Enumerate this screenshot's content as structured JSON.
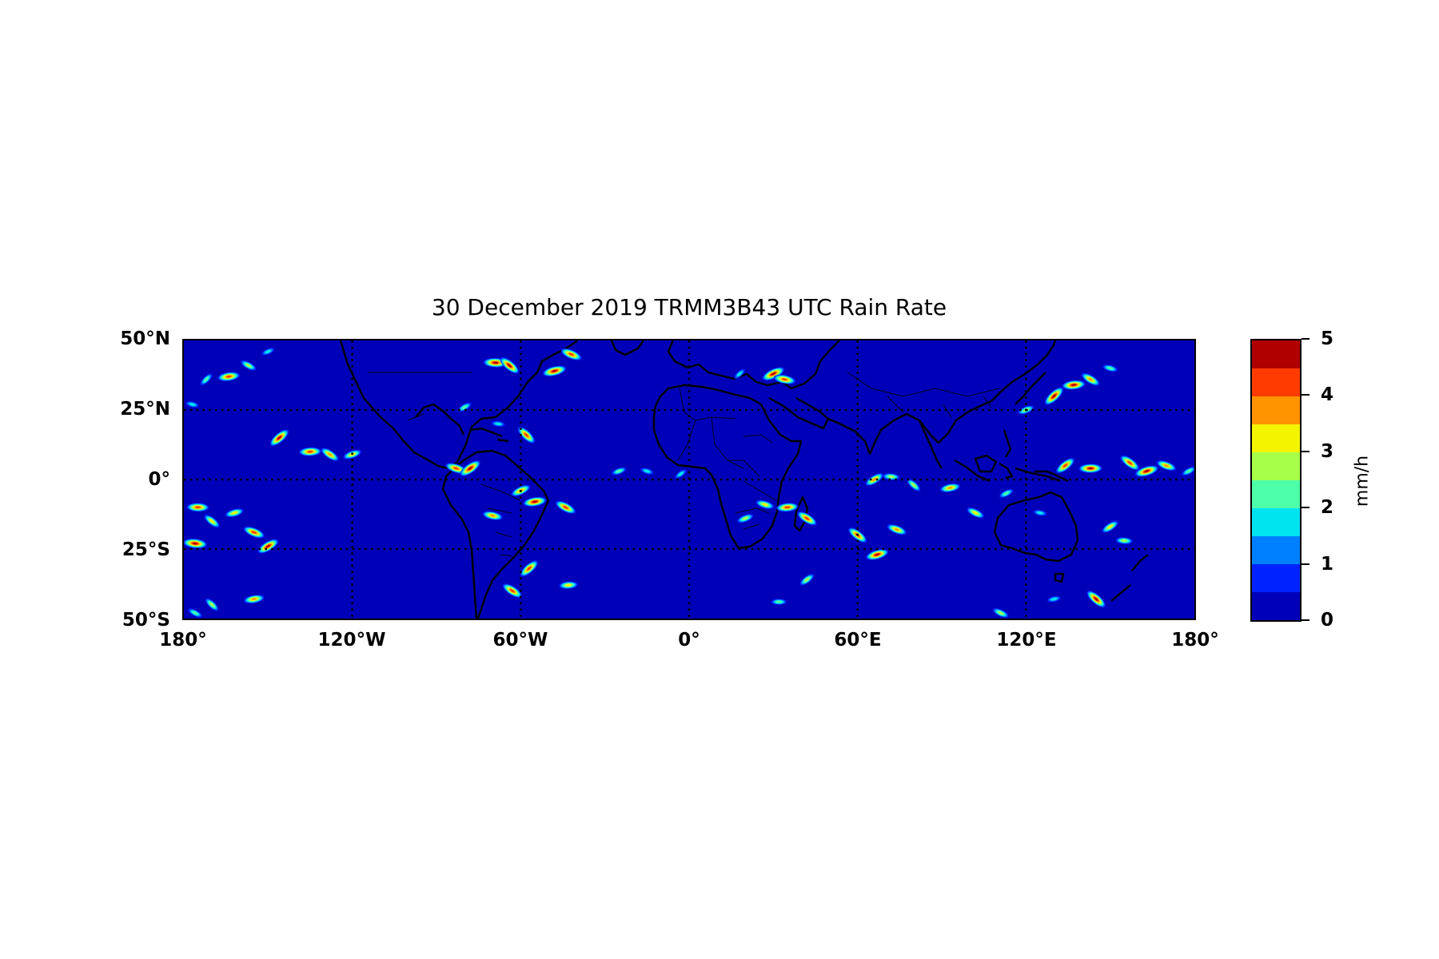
{
  "title": "30 December 2019 TRMM3B43 UTC Rain Rate",
  "chart_data": {
    "type": "heatmap",
    "title": "30 December 2019 TRMM3B43 UTC Rain Rate",
    "projection": "equirectangular",
    "x_range": [
      -180,
      180
    ],
    "y_range": [
      -50,
      50
    ],
    "grid": "dotted",
    "lat_ticks": [
      {
        "value": 50,
        "label": "50°N"
      },
      {
        "value": 25,
        "label": "25°N"
      },
      {
        "value": 0,
        "label": "0°"
      },
      {
        "value": -25,
        "label": "25°S"
      },
      {
        "value": -50,
        "label": "50°S"
      }
    ],
    "lon_ticks": [
      {
        "value": -180,
        "label": "180°"
      },
      {
        "value": -120,
        "label": "120°W"
      },
      {
        "value": -60,
        "label": "60°W"
      },
      {
        "value": 0,
        "label": "0°"
      },
      {
        "value": 60,
        "label": "60°E"
      },
      {
        "value": 120,
        "label": "120°E"
      },
      {
        "value": 180,
        "label": "180°"
      }
    ],
    "colorbar": {
      "label": "mm/h",
      "range": [
        0,
        5
      ],
      "ticks": [
        0,
        1,
        2,
        3,
        4,
        5
      ],
      "colors": [
        "#0000b8",
        "#0022ff",
        "#0080ff",
        "#00e4f0",
        "#4dffa8",
        "#a8ff4a",
        "#f4f400",
        "#ff9400",
        "#ff3b00",
        "#b00000"
      ]
    },
    "rain_cells": [
      {
        "lon": -172,
        "lat": 36,
        "value": 2.5
      },
      {
        "lon": -164,
        "lat": 37,
        "value": 4.5
      },
      {
        "lon": -157,
        "lat": 41,
        "value": 3.0
      },
      {
        "lon": -150,
        "lat": 46,
        "value": 2.0
      },
      {
        "lon": -177,
        "lat": 27,
        "value": 2.0
      },
      {
        "lon": -146,
        "lat": 15,
        "value": 4.8
      },
      {
        "lon": -135,
        "lat": 10,
        "value": 4.5
      },
      {
        "lon": -128,
        "lat": 9,
        "value": 4.0
      },
      {
        "lon": -120,
        "lat": 9,
        "value": 3.5
      },
      {
        "lon": -83,
        "lat": 4,
        "value": 4.5
      },
      {
        "lon": -78,
        "lat": 4,
        "value": 5.0
      },
      {
        "lon": -69,
        "lat": 42,
        "value": 5.0
      },
      {
        "lon": -64,
        "lat": 41,
        "value": 4.8
      },
      {
        "lon": -48,
        "lat": 39,
        "value": 5.0
      },
      {
        "lon": -42,
        "lat": 45,
        "value": 4.5
      },
      {
        "lon": -80,
        "lat": 26,
        "value": 2.5
      },
      {
        "lon": -68,
        "lat": 20,
        "value": 2.0
      },
      {
        "lon": -58,
        "lat": 16,
        "value": 4.5
      },
      {
        "lon": -55,
        "lat": -8,
        "value": 4.8
      },
      {
        "lon": -44,
        "lat": -10,
        "value": 4.5
      },
      {
        "lon": -60,
        "lat": -4,
        "value": 4.0
      },
      {
        "lon": -70,
        "lat": -13,
        "value": 4.0
      },
      {
        "lon": -57,
        "lat": -32,
        "value": 4.5
      },
      {
        "lon": -43,
        "lat": -38,
        "value": 3.5
      },
      {
        "lon": -63,
        "lat": -40,
        "value": 4.5
      },
      {
        "lon": -25,
        "lat": 3,
        "value": 2.5
      },
      {
        "lon": -15,
        "lat": 3,
        "value": 2.0
      },
      {
        "lon": -3,
        "lat": 2,
        "value": 2.0
      },
      {
        "lon": -175,
        "lat": -10,
        "value": 4.5
      },
      {
        "lon": -170,
        "lat": -15,
        "value": 3.5
      },
      {
        "lon": -162,
        "lat": -12,
        "value": 3.5
      },
      {
        "lon": -155,
        "lat": -19,
        "value": 4.5
      },
      {
        "lon": -150,
        "lat": -24,
        "value": 4.8
      },
      {
        "lon": -176,
        "lat": -23,
        "value": 5.0
      },
      {
        "lon": -170,
        "lat": -45,
        "value": 3.0
      },
      {
        "lon": -155,
        "lat": -43,
        "value": 4.0
      },
      {
        "lon": -176,
        "lat": -48,
        "value": 2.5
      },
      {
        "lon": 30,
        "lat": 38,
        "value": 5.0
      },
      {
        "lon": 34,
        "lat": 36,
        "value": 4.5
      },
      {
        "lon": 18,
        "lat": 38,
        "value": 2.0
      },
      {
        "lon": 35,
        "lat": -10,
        "value": 4.5
      },
      {
        "lon": 42,
        "lat": -14,
        "value": 4.5
      },
      {
        "lon": 20,
        "lat": -14,
        "value": 3.0
      },
      {
        "lon": 27,
        "lat": -9,
        "value": 3.5
      },
      {
        "lon": 42,
        "lat": -36,
        "value": 3.0
      },
      {
        "lon": 32,
        "lat": -44,
        "value": 2.5
      },
      {
        "lon": 60,
        "lat": -20,
        "value": 4.5
      },
      {
        "lon": 67,
        "lat": -27,
        "value": 4.8
      },
      {
        "lon": 74,
        "lat": -18,
        "value": 4.0
      },
      {
        "lon": 66,
        "lat": 0,
        "value": 4.0
      },
      {
        "lon": 72,
        "lat": 1,
        "value": 3.0
      },
      {
        "lon": 80,
        "lat": -2,
        "value": 3.0
      },
      {
        "lon": 93,
        "lat": -3,
        "value": 4.0
      },
      {
        "lon": 102,
        "lat": -12,
        "value": 3.5
      },
      {
        "lon": 113,
        "lat": -5,
        "value": 2.5
      },
      {
        "lon": 125,
        "lat": -12,
        "value": 2.0
      },
      {
        "lon": 130,
        "lat": 30,
        "value": 5.0
      },
      {
        "lon": 137,
        "lat": 34,
        "value": 4.8
      },
      {
        "lon": 143,
        "lat": 36,
        "value": 4.0
      },
      {
        "lon": 120,
        "lat": 25,
        "value": 3.0
      },
      {
        "lon": 150,
        "lat": 40,
        "value": 2.5
      },
      {
        "lon": 134,
        "lat": 5,
        "value": 4.5
      },
      {
        "lon": 143,
        "lat": 4,
        "value": 4.8
      },
      {
        "lon": 157,
        "lat": 6,
        "value": 4.5
      },
      {
        "lon": 163,
        "lat": 3,
        "value": 5.0
      },
      {
        "lon": 170,
        "lat": 5,
        "value": 4.0
      },
      {
        "lon": 150,
        "lat": -17,
        "value": 3.5
      },
      {
        "lon": 155,
        "lat": -22,
        "value": 3.0
      },
      {
        "lon": 145,
        "lat": -43,
        "value": 4.8
      },
      {
        "lon": 130,
        "lat": -43,
        "value": 2.0
      },
      {
        "lon": 111,
        "lat": -48,
        "value": 3.0
      },
      {
        "lon": 178,
        "lat": 3,
        "value": 2.5
      }
    ]
  }
}
